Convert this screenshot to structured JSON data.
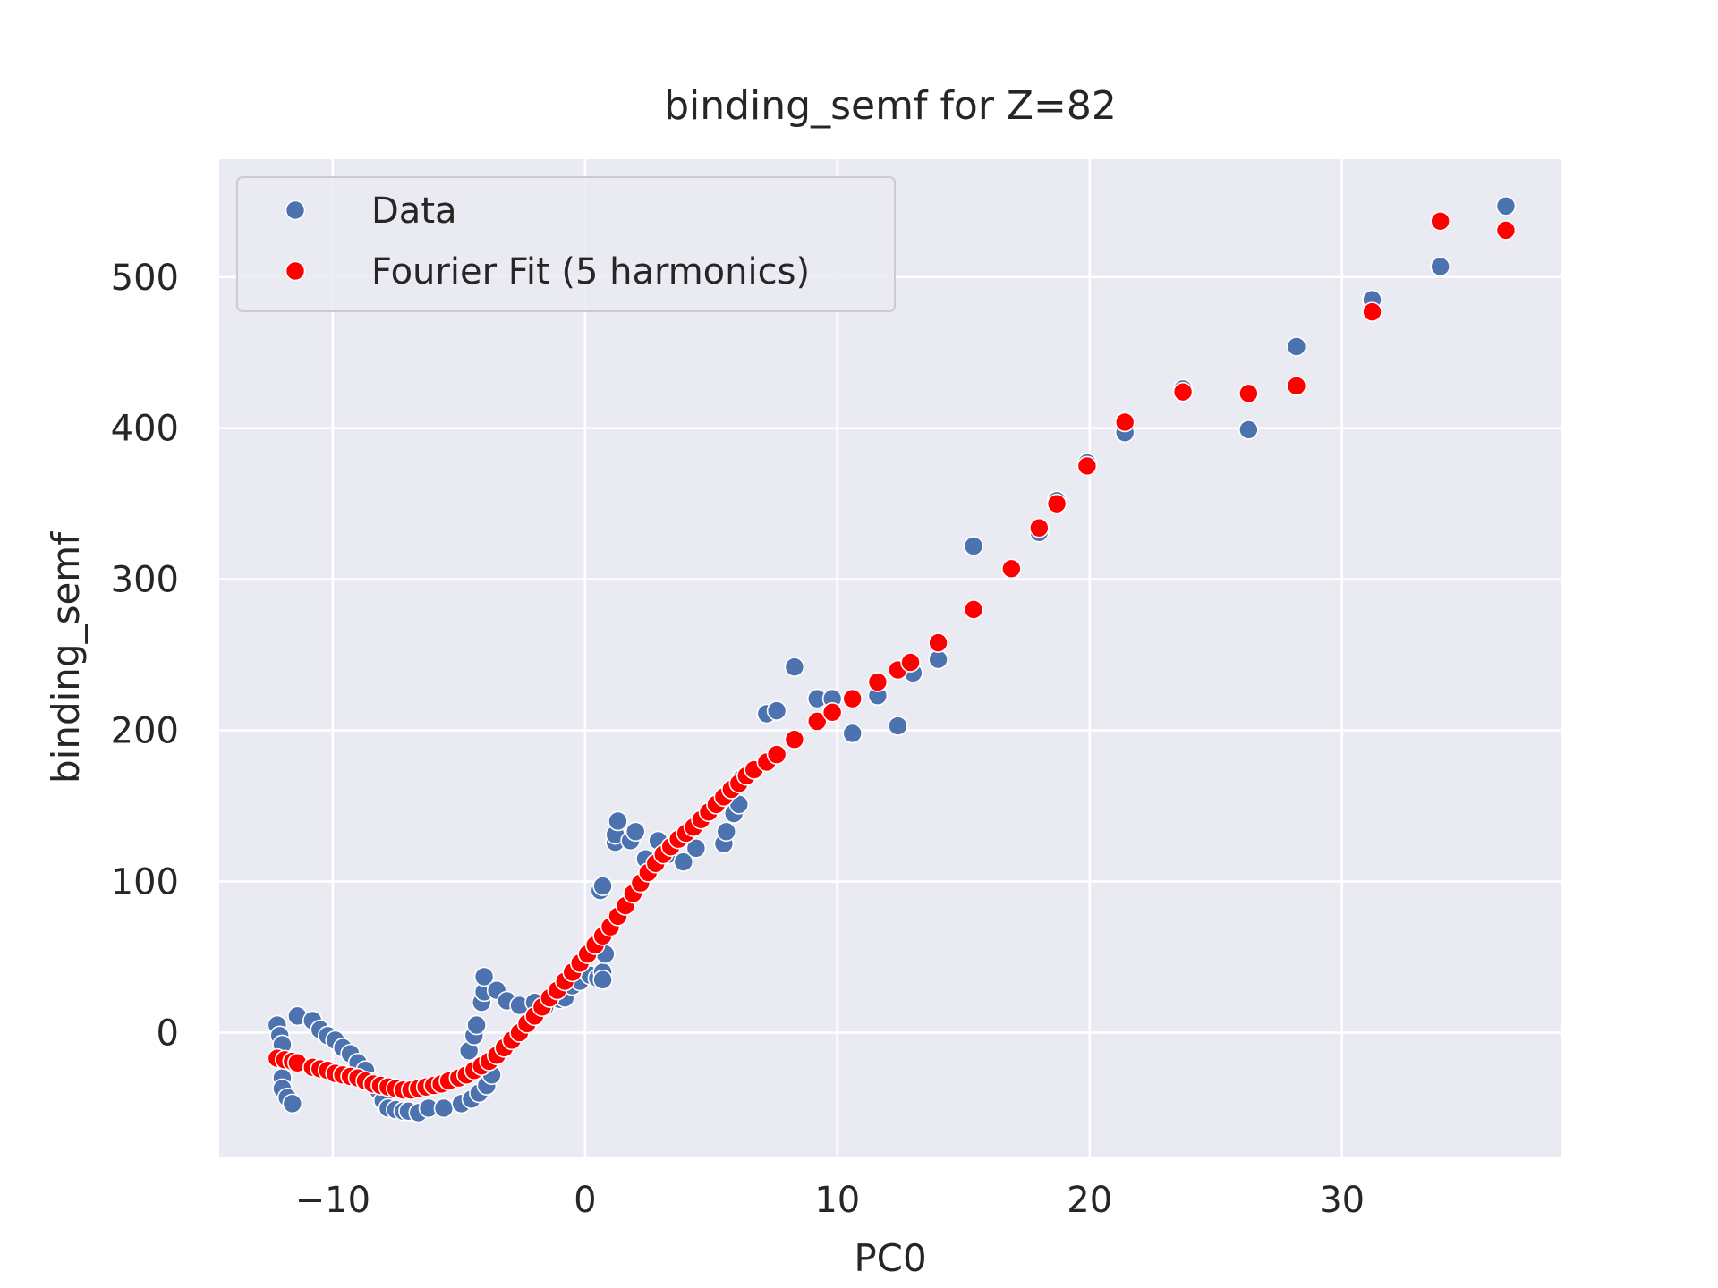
{
  "chart_data": {
    "type": "scatter",
    "title": "binding_semf for Z=82",
    "xlabel": "PC0",
    "ylabel": "binding_semf",
    "xlim": [
      -14.5,
      38.7
    ],
    "ylim": [
      -82,
      578
    ],
    "xticks": [
      -10,
      0,
      10,
      20,
      30
    ],
    "xtick_labels": [
      "−10",
      "0",
      "10",
      "20",
      "30"
    ],
    "yticks": [
      0,
      100,
      200,
      300,
      400,
      500
    ],
    "ytick_labels": [
      "0",
      "100",
      "200",
      "300",
      "400",
      "500"
    ],
    "grid": true,
    "legend_position": "upper-left",
    "colors": {
      "background": "#eaeaf2",
      "grid": "#ffffff",
      "data": "#4c72b0",
      "fit": "#ff0000"
    },
    "series": [
      {
        "name": "Data",
        "color": "#4c72b0",
        "points": [
          [
            -12.2,
            5
          ],
          [
            -12.1,
            -2
          ],
          [
            -12.0,
            -8
          ],
          [
            -12.0,
            -30
          ],
          [
            -12.0,
            -37
          ],
          [
            -11.8,
            -43
          ],
          [
            -11.6,
            -47
          ],
          [
            -11.4,
            11
          ],
          [
            -10.8,
            8
          ],
          [
            -10.5,
            2
          ],
          [
            -10.2,
            -2
          ],
          [
            -9.9,
            -5
          ],
          [
            -9.6,
            -10
          ],
          [
            -9.3,
            -14
          ],
          [
            -9.0,
            -20
          ],
          [
            -8.7,
            -25
          ],
          [
            -8.4,
            -33
          ],
          [
            -8.2,
            -38
          ],
          [
            -8.0,
            -45
          ],
          [
            -7.8,
            -50
          ],
          [
            -7.5,
            -51
          ],
          [
            -7.2,
            -52
          ],
          [
            -7.0,
            -52
          ],
          [
            -6.6,
            -53
          ],
          [
            -6.2,
            -50
          ],
          [
            -5.6,
            -50
          ],
          [
            -4.9,
            -47
          ],
          [
            -4.5,
            -44
          ],
          [
            -4.2,
            -40
          ],
          [
            -3.9,
            -35
          ],
          [
            -3.7,
            -28
          ],
          [
            -4.6,
            -12
          ],
          [
            -4.4,
            -2
          ],
          [
            -4.3,
            5
          ],
          [
            -4.1,
            20
          ],
          [
            -4.0,
            27
          ],
          [
            -4.0,
            37
          ],
          [
            -3.5,
            28
          ],
          [
            -3.1,
            21
          ],
          [
            -2.6,
            18
          ],
          [
            -2.0,
            20
          ],
          [
            -1.6,
            17
          ],
          [
            -1.0,
            22
          ],
          [
            -0.8,
            23
          ],
          [
            -0.5,
            31
          ],
          [
            -0.2,
            34
          ],
          [
            0.2,
            38
          ],
          [
            0.5,
            36
          ],
          [
            0.7,
            40
          ],
          [
            0.7,
            35
          ],
          [
            0.8,
            52
          ],
          [
            0.6,
            94
          ],
          [
            0.7,
            97
          ],
          [
            1.2,
            126
          ],
          [
            1.2,
            131
          ],
          [
            1.3,
            140
          ],
          [
            1.8,
            127
          ],
          [
            2.0,
            133
          ],
          [
            2.4,
            115
          ],
          [
            2.9,
            127
          ],
          [
            3.3,
            118
          ],
          [
            3.9,
            113
          ],
          [
            4.4,
            122
          ],
          [
            5.5,
            125
          ],
          [
            5.6,
            133
          ],
          [
            5.9,
            145
          ],
          [
            6.1,
            151
          ],
          [
            6.2,
            168
          ],
          [
            7.2,
            211
          ],
          [
            7.6,
            213
          ],
          [
            8.3,
            242
          ],
          [
            9.2,
            221
          ],
          [
            9.8,
            221
          ],
          [
            10.6,
            198
          ],
          [
            11.6,
            223
          ],
          [
            12.4,
            203
          ],
          [
            13.0,
            238
          ],
          [
            14.0,
            247
          ],
          [
            15.4,
            322
          ],
          [
            18.0,
            331
          ],
          [
            18.7,
            352
          ],
          [
            19.9,
            377
          ],
          [
            21.4,
            397
          ],
          [
            23.7,
            426
          ],
          [
            26.3,
            399
          ],
          [
            28.2,
            454
          ],
          [
            31.2,
            485
          ],
          [
            33.9,
            507
          ],
          [
            36.5,
            547
          ]
        ]
      },
      {
        "name": "Fourier Fit (5 harmonics)",
        "color": "#ff0000",
        "points": [
          [
            -12.2,
            -17
          ],
          [
            -11.9,
            -18
          ],
          [
            -11.6,
            -19
          ],
          [
            -11.4,
            -20
          ],
          [
            -10.8,
            -23
          ],
          [
            -10.5,
            -24
          ],
          [
            -10.2,
            -25
          ],
          [
            -9.9,
            -27
          ],
          [
            -9.6,
            -28
          ],
          [
            -9.3,
            -29
          ],
          [
            -9.0,
            -30
          ],
          [
            -8.7,
            -32
          ],
          [
            -8.4,
            -34
          ],
          [
            -8.1,
            -35
          ],
          [
            -7.8,
            -36
          ],
          [
            -7.5,
            -37
          ],
          [
            -7.2,
            -38
          ],
          [
            -6.9,
            -38
          ],
          [
            -6.6,
            -37
          ],
          [
            -6.3,
            -36
          ],
          [
            -6.0,
            -35
          ],
          [
            -5.7,
            -34
          ],
          [
            -5.4,
            -32
          ],
          [
            -5.0,
            -30
          ],
          [
            -4.7,
            -28
          ],
          [
            -4.4,
            -25
          ],
          [
            -4.1,
            -22
          ],
          [
            -3.8,
            -19
          ],
          [
            -3.5,
            -15
          ],
          [
            -3.2,
            -10
          ],
          [
            -2.9,
            -5
          ],
          [
            -2.6,
            0
          ],
          [
            -2.3,
            6
          ],
          [
            -2.0,
            11
          ],
          [
            -1.7,
            17
          ],
          [
            -1.4,
            23
          ],
          [
            -1.1,
            28
          ],
          [
            -0.8,
            34
          ],
          [
            -0.5,
            40
          ],
          [
            -0.2,
            46
          ],
          [
            0.1,
            52
          ],
          [
            0.4,
            58
          ],
          [
            0.7,
            64
          ],
          [
            1.0,
            70
          ],
          [
            1.3,
            77
          ],
          [
            1.6,
            84
          ],
          [
            1.9,
            92
          ],
          [
            2.2,
            99
          ],
          [
            2.5,
            106
          ],
          [
            2.8,
            112
          ],
          [
            3.1,
            118
          ],
          [
            3.4,
            123
          ],
          [
            3.7,
            128
          ],
          [
            4.0,
            132
          ],
          [
            4.3,
            136
          ],
          [
            4.6,
            141
          ],
          [
            4.9,
            146
          ],
          [
            5.2,
            151
          ],
          [
            5.5,
            156
          ],
          [
            5.8,
            161
          ],
          [
            6.1,
            165
          ],
          [
            6.4,
            170
          ],
          [
            6.7,
            174
          ],
          [
            7.2,
            179
          ],
          [
            7.6,
            184
          ],
          [
            8.3,
            194
          ],
          [
            9.2,
            206
          ],
          [
            9.8,
            212
          ],
          [
            10.6,
            221
          ],
          [
            11.6,
            232
          ],
          [
            12.4,
            240
          ],
          [
            12.9,
            245
          ],
          [
            14.0,
            258
          ],
          [
            15.4,
            280
          ],
          [
            16.9,
            307
          ],
          [
            18.0,
            334
          ],
          [
            18.7,
            350
          ],
          [
            19.9,
            375
          ],
          [
            21.4,
            404
          ],
          [
            23.7,
            424
          ],
          [
            26.3,
            423
          ],
          [
            28.2,
            428
          ],
          [
            31.2,
            477
          ],
          [
            33.9,
            537
          ],
          [
            36.5,
            531
          ]
        ]
      }
    ]
  }
}
